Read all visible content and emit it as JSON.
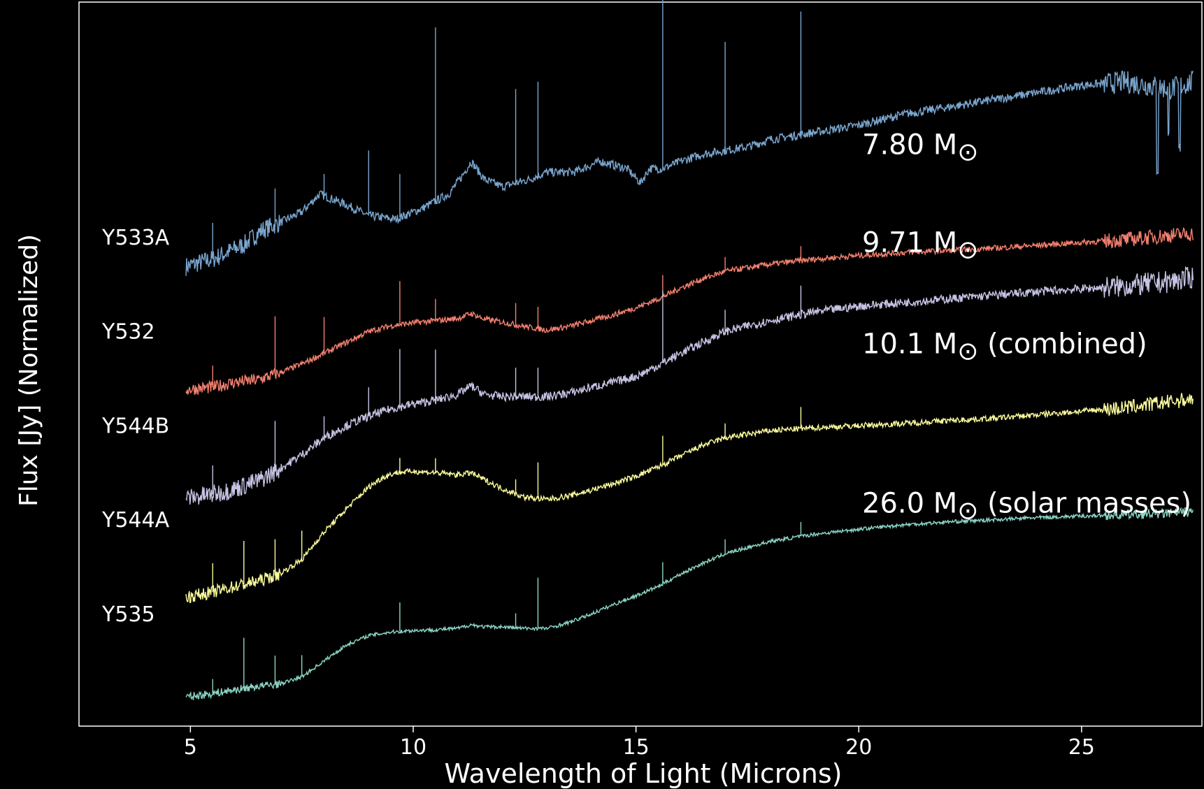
{
  "chart_data": {
    "type": "line",
    "xlabel": "Wavelength of Light (Microns)",
    "ylabel": "Flux [Jy] (Normalized)",
    "xlim": [
      2.5,
      27.7
    ],
    "ylim": [
      0,
      1
    ],
    "x_ticks": [
      "5",
      "10",
      "15",
      "20",
      "25"
    ],
    "x_tick_values": [
      5,
      10,
      15,
      20,
      25
    ],
    "grid": false,
    "background": "#000000",
    "series": [
      {
        "name": "Y533A",
        "mass_label": "7.80 M",
        "mass_suffix": "",
        "color": "#7aa6cf",
        "noise": 0.012,
        "x": [
          4.9,
          5.5,
          6.2,
          6.6,
          7.0,
          7.5,
          7.9,
          8.5,
          9.0,
          9.6,
          10.2,
          10.8,
          11.1,
          11.3,
          11.6,
          12.0,
          12.6,
          13.0,
          13.6,
          14.2,
          14.8,
          15.1,
          15.3,
          15.6,
          16.0,
          16.5,
          17.0,
          17.5,
          18.0,
          18.5,
          19.0,
          20.0,
          21.0,
          22.0,
          23.0,
          24.0,
          25.0,
          26.0,
          26.5,
          27.0,
          27.5
        ],
        "y": [
          0.635,
          0.645,
          0.665,
          0.685,
          0.695,
          0.71,
          0.735,
          0.72,
          0.705,
          0.7,
          0.715,
          0.735,
          0.76,
          0.78,
          0.755,
          0.745,
          0.755,
          0.765,
          0.765,
          0.78,
          0.77,
          0.75,
          0.77,
          0.77,
          0.78,
          0.79,
          0.795,
          0.8,
          0.81,
          0.815,
          0.82,
          0.83,
          0.845,
          0.855,
          0.865,
          0.875,
          0.885,
          0.89,
          0.885,
          0.88,
          0.89
        ],
        "lines": [
          [
            5.5,
            0.05
          ],
          [
            6.9,
            0.05
          ],
          [
            8.0,
            0.03
          ],
          [
            9.0,
            0.09
          ],
          [
            9.7,
            0.06
          ],
          [
            10.5,
            0.24
          ],
          [
            12.3,
            0.13
          ],
          [
            12.8,
            0.13
          ],
          [
            15.6,
            0.26
          ],
          [
            17.0,
            0.15
          ],
          [
            18.7,
            0.17
          ]
        ],
        "dip": [
          [
            26.7,
            -0.11
          ],
          [
            26.95,
            -0.07
          ],
          [
            27.2,
            -0.09
          ]
        ]
      },
      {
        "name": "Y532",
        "mass_label": "9.71 M",
        "mass_suffix": "",
        "color": "#f4806f",
        "noise": 0.008,
        "x": [
          4.9,
          5.5,
          6.0,
          6.5,
          7.0,
          7.5,
          8.0,
          8.5,
          9.0,
          9.5,
          10.0,
          10.5,
          11.0,
          11.3,
          11.6,
          12.0,
          12.5,
          13.0,
          13.5,
          14.0,
          14.5,
          15.0,
          15.5,
          16.0,
          16.5,
          17.0,
          18.0,
          19.0,
          20.0,
          21.0,
          22.0,
          23.0,
          24.0,
          25.0,
          26.0,
          27.0,
          27.5
        ],
        "y": [
          0.465,
          0.468,
          0.475,
          0.478,
          0.488,
          0.5,
          0.515,
          0.53,
          0.545,
          0.553,
          0.557,
          0.56,
          0.563,
          0.57,
          0.562,
          0.558,
          0.552,
          0.547,
          0.552,
          0.56,
          0.568,
          0.578,
          0.59,
          0.605,
          0.618,
          0.628,
          0.638,
          0.645,
          0.65,
          0.654,
          0.657,
          0.66,
          0.664,
          0.668,
          0.672,
          0.678,
          0.68
        ],
        "lines": [
          [
            5.5,
            0.03
          ],
          [
            6.9,
            0.08
          ],
          [
            8.0,
            0.05
          ],
          [
            9.7,
            0.06
          ],
          [
            10.5,
            0.03
          ],
          [
            12.3,
            0.03
          ],
          [
            12.8,
            0.03
          ],
          [
            15.6,
            0.03
          ],
          [
            17.0,
            0.02
          ],
          [
            18.7,
            0.02
          ]
        ],
        "dip": []
      },
      {
        "name": "Y544B",
        "mass_label": "10.1 M",
        "mass_suffix": " (combined)",
        "color": "#c6c4e4",
        "noise": 0.012,
        "x": [
          4.9,
          5.5,
          6.0,
          6.5,
          7.0,
          7.5,
          8.0,
          8.5,
          9.0,
          9.5,
          10.0,
          10.5,
          11.0,
          11.3,
          11.6,
          12.0,
          12.5,
          13.0,
          13.5,
          14.0,
          14.5,
          15.0,
          15.5,
          16.0,
          16.5,
          17.0,
          18.0,
          19.0,
          20.0,
          21.0,
          22.0,
          23.0,
          24.0,
          25.0,
          26.0,
          27.0,
          27.5
        ],
        "y": [
          0.315,
          0.32,
          0.328,
          0.338,
          0.355,
          0.375,
          0.398,
          0.415,
          0.428,
          0.438,
          0.445,
          0.45,
          0.458,
          0.47,
          0.458,
          0.455,
          0.455,
          0.455,
          0.46,
          0.468,
          0.475,
          0.483,
          0.498,
          0.515,
          0.53,
          0.545,
          0.56,
          0.572,
          0.58,
          0.585,
          0.59,
          0.595,
          0.6,
          0.604,
          0.608,
          0.614,
          0.62
        ],
        "lines": [
          [
            5.5,
            0.04
          ],
          [
            6.9,
            0.07
          ],
          [
            8.0,
            0.03
          ],
          [
            9.0,
            0.04
          ],
          [
            9.7,
            0.08
          ],
          [
            10.5,
            0.07
          ],
          [
            12.3,
            0.04
          ],
          [
            12.8,
            0.04
          ],
          [
            15.6,
            0.1
          ],
          [
            17.0,
            0.03
          ],
          [
            18.7,
            0.04
          ]
        ],
        "dip": []
      },
      {
        "name": "Y544A",
        "mass_label": "26.0 M",
        "mass_suffix": "",
        "color": "#fbfb9c",
        "noise": 0.008,
        "x": [
          4.9,
          5.5,
          6.0,
          6.5,
          7.0,
          7.5,
          8.0,
          8.5,
          9.0,
          9.3,
          9.6,
          10.0,
          10.5,
          11.0,
          11.3,
          11.6,
          12.0,
          12.5,
          13.0,
          13.5,
          14.0,
          14.5,
          15.0,
          15.5,
          16.0,
          16.5,
          17.0,
          18.0,
          19.0,
          20.0,
          21.0,
          22.0,
          23.0,
          24.0,
          25.0,
          26.0,
          27.0,
          27.5
        ],
        "y": [
          0.178,
          0.185,
          0.193,
          0.2,
          0.21,
          0.23,
          0.268,
          0.3,
          0.33,
          0.343,
          0.35,
          0.352,
          0.35,
          0.347,
          0.35,
          0.34,
          0.328,
          0.316,
          0.313,
          0.318,
          0.326,
          0.335,
          0.345,
          0.358,
          0.373,
          0.388,
          0.398,
          0.408,
          0.412,
          0.415,
          0.418,
          0.422,
          0.425,
          0.43,
          0.435,
          0.44,
          0.448,
          0.452
        ],
        "lines": [
          [
            5.5,
            0.04
          ],
          [
            6.2,
            0.06
          ],
          [
            6.9,
            0.05
          ],
          [
            7.5,
            0.04
          ],
          [
            9.7,
            0.02
          ],
          [
            10.5,
            0.02
          ],
          [
            12.3,
            0.02
          ],
          [
            12.8,
            0.05
          ],
          [
            15.6,
            0.04
          ],
          [
            17.0,
            0.02
          ],
          [
            18.7,
            0.03
          ]
        ],
        "dip": []
      },
      {
        "name": "Y535",
        "mass_label": "",
        "mass_suffix": " (solar masses)",
        "color": "#8cd6c6",
        "noise": 0.005,
        "x": [
          4.9,
          5.5,
          6.0,
          6.5,
          7.0,
          7.5,
          8.0,
          8.5,
          9.0,
          9.5,
          10.0,
          10.5,
          11.0,
          11.3,
          11.6,
          12.0,
          12.5,
          13.0,
          13.5,
          14.0,
          14.5,
          15.0,
          15.5,
          16.0,
          16.5,
          17.0,
          18.0,
          19.0,
          20.0,
          21.0,
          22.0,
          23.0,
          24.0,
          25.0,
          26.0,
          27.0,
          27.5
        ],
        "y": [
          0.04,
          0.045,
          0.05,
          0.055,
          0.058,
          0.068,
          0.09,
          0.112,
          0.125,
          0.13,
          0.132,
          0.133,
          0.135,
          0.14,
          0.137,
          0.137,
          0.135,
          0.135,
          0.143,
          0.155,
          0.168,
          0.18,
          0.193,
          0.21,
          0.225,
          0.238,
          0.255,
          0.265,
          0.272,
          0.278,
          0.282,
          0.285,
          0.288,
          0.29,
          0.292,
          0.294,
          0.296
        ],
        "lines": [
          [
            5.5,
            0.02
          ],
          [
            6.2,
            0.07
          ],
          [
            6.9,
            0.04
          ],
          [
            7.5,
            0.03
          ],
          [
            9.7,
            0.04
          ],
          [
            12.3,
            0.02
          ],
          [
            12.8,
            0.07
          ],
          [
            15.6,
            0.03
          ],
          [
            17.0,
            0.02
          ],
          [
            18.7,
            0.02
          ]
        ],
        "dip": []
      }
    ],
    "sun_symbol": "⊙"
  }
}
